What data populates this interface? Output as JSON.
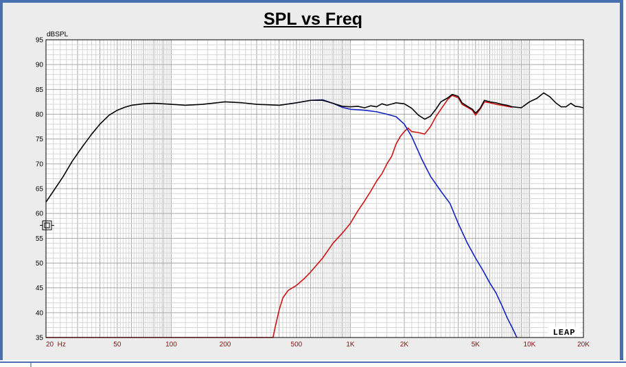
{
  "chart_data": {
    "type": "line",
    "title": "SPL vs Freq",
    "ylabel": "dBSPL",
    "xlabel": "",
    "x_scale": "log",
    "xlim": [
      20,
      20000
    ],
    "ylim": [
      35,
      95
    ],
    "grid": true,
    "y_ticks": [
      35,
      40,
      45,
      50,
      55,
      60,
      65,
      70,
      75,
      80,
      85,
      90,
      95
    ],
    "x_tick_labels": [
      {
        "value": 20,
        "label": "20  Hz"
      },
      {
        "value": 50,
        "label": "50"
      },
      {
        "value": 100,
        "label": "100"
      },
      {
        "value": 200,
        "label": "200"
      },
      {
        "value": 500,
        "label": "500"
      },
      {
        "value": 1000,
        "label": "1K"
      },
      {
        "value": 2000,
        "label": "2K"
      },
      {
        "value": 5000,
        "label": "5K"
      },
      {
        "value": 10000,
        "label": "10K"
      },
      {
        "value": 20000,
        "label": "20K"
      }
    ],
    "series": [
      {
        "color": "#000000",
        "points": [
          [
            20,
            62.3
          ],
          [
            22,
            64.5
          ],
          [
            25,
            67.5
          ],
          [
            28,
            70.5
          ],
          [
            32,
            73.5
          ],
          [
            36,
            76
          ],
          [
            40,
            78
          ],
          [
            45,
            79.8
          ],
          [
            50,
            80.8
          ],
          [
            55,
            81.4
          ],
          [
            60,
            81.8
          ],
          [
            70,
            82.1
          ],
          [
            80,
            82.2
          ],
          [
            90,
            82.1
          ],
          [
            100,
            82
          ],
          [
            120,
            81.8
          ],
          [
            150,
            82
          ],
          [
            200,
            82.5
          ],
          [
            250,
            82.3
          ],
          [
            300,
            82
          ],
          [
            400,
            81.8
          ],
          [
            500,
            82.3
          ],
          [
            600,
            82.8
          ],
          [
            700,
            82.8
          ],
          [
            800,
            82.2
          ],
          [
            900,
            81.6
          ],
          [
            1000,
            81.5
          ],
          [
            1100,
            81.6
          ],
          [
            1200,
            81.3
          ],
          [
            1300,
            81.7
          ],
          [
            1400,
            81.5
          ],
          [
            1500,
            82.1
          ],
          [
            1600,
            81.8
          ],
          [
            1800,
            82.3
          ],
          [
            2000,
            82.1
          ],
          [
            2200,
            81.2
          ],
          [
            2400,
            79.8
          ],
          [
            2600,
            79
          ],
          [
            2800,
            79.6
          ],
          [
            3000,
            81
          ],
          [
            3200,
            82.5
          ],
          [
            3500,
            83.3
          ],
          [
            3700,
            84
          ],
          [
            4000,
            83.6
          ],
          [
            4200,
            82.3
          ],
          [
            4500,
            81.6
          ],
          [
            4800,
            81
          ],
          [
            5000,
            80.2
          ],
          [
            5300,
            81.2
          ],
          [
            5600,
            82.8
          ],
          [
            6000,
            82.5
          ],
          [
            6500,
            82.3
          ],
          [
            7000,
            82
          ],
          [
            7500,
            81.8
          ],
          [
            8000,
            81.5
          ],
          [
            9000,
            81.3
          ],
          [
            10000,
            82.5
          ],
          [
            11000,
            83.2
          ],
          [
            12000,
            84.3
          ],
          [
            13000,
            83.5
          ],
          [
            14000,
            82.3
          ],
          [
            15000,
            81.5
          ],
          [
            16000,
            81.5
          ],
          [
            17000,
            82.2
          ],
          [
            18000,
            81.6
          ],
          [
            19000,
            81.5
          ],
          [
            20000,
            81.3
          ]
        ]
      },
      {
        "color": "#1020c0",
        "points": [
          [
            400,
            81.8
          ],
          [
            500,
            82.3
          ],
          [
            600,
            82.8
          ],
          [
            700,
            82.9
          ],
          [
            800,
            82.2
          ],
          [
            900,
            81.4
          ],
          [
            1000,
            81
          ],
          [
            1200,
            80.8
          ],
          [
            1400,
            80.5
          ],
          [
            1600,
            80
          ],
          [
            1800,
            79.5
          ],
          [
            2000,
            78
          ],
          [
            2200,
            75.5
          ],
          [
            2500,
            71
          ],
          [
            2800,
            67.5
          ],
          [
            3200,
            64.5
          ],
          [
            3600,
            62
          ],
          [
            4000,
            58
          ],
          [
            4500,
            54
          ],
          [
            5000,
            51
          ],
          [
            5500,
            48.5
          ],
          [
            6000,
            46
          ],
          [
            6500,
            44
          ],
          [
            7000,
            41.5
          ],
          [
            7500,
            39
          ],
          [
            8000,
            37
          ],
          [
            8500,
            35
          ]
        ]
      },
      {
        "color": "#d01010",
        "points": [
          [
            20,
            35
          ],
          [
            370,
            35
          ],
          [
            380,
            37
          ],
          [
            400,
            40.5
          ],
          [
            420,
            43
          ],
          [
            450,
            44.5
          ],
          [
            500,
            45.5
          ],
          [
            550,
            46.8
          ],
          [
            600,
            48.2
          ],
          [
            700,
            51
          ],
          [
            800,
            54
          ],
          [
            900,
            56
          ],
          [
            1000,
            58
          ],
          [
            1100,
            60.5
          ],
          [
            1200,
            62.5
          ],
          [
            1300,
            64.5
          ],
          [
            1400,
            66.5
          ],
          [
            1500,
            68
          ],
          [
            1600,
            70
          ],
          [
            1700,
            71.5
          ],
          [
            1800,
            74
          ],
          [
            1900,
            75.5
          ],
          [
            2000,
            76.5
          ],
          [
            2100,
            77.2
          ],
          [
            2200,
            76.5
          ],
          [
            2400,
            76.3
          ],
          [
            2600,
            76
          ],
          [
            2800,
            77.5
          ],
          [
            3000,
            79.5
          ],
          [
            3200,
            81
          ],
          [
            3500,
            83
          ],
          [
            3700,
            83.8
          ],
          [
            4000,
            83.3
          ],
          [
            4200,
            82
          ],
          [
            4500,
            81.4
          ],
          [
            4800,
            80.8
          ],
          [
            5000,
            79.8
          ],
          [
            5300,
            81
          ],
          [
            5600,
            82.5
          ],
          [
            6000,
            82.3
          ],
          [
            6500,
            82
          ],
          [
            7000,
            81.8
          ],
          [
            7500,
            81.6
          ],
          [
            8000,
            81.4
          ]
        ]
      }
    ]
  },
  "logo_text": "LEAP"
}
